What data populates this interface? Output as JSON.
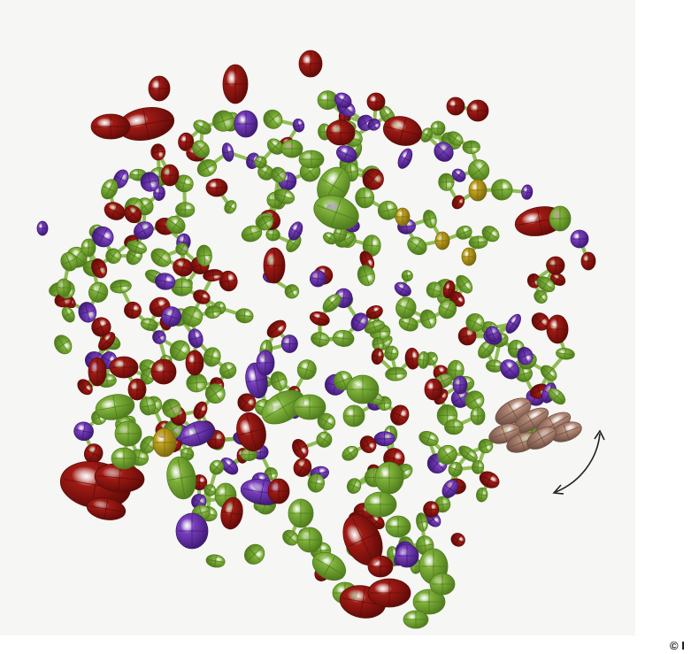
{
  "figure": {
    "subject": "",
    "palette": {
      "carbon": "#7fb23a",
      "carbon_dark": "#4e7a1c",
      "oxygen": "#a11a14",
      "oxygen_dark": "#5e0b08",
      "nitrogen": "#7a3fc0",
      "nitrogen_dark": "#3d1a72",
      "sulfur": "#c2a31c",
      "disordered": "#b48a78",
      "page_background": "#f6f6f4"
    },
    "icons": [
      "motion-arrow-icon"
    ]
  },
  "credit": {
    "text": "© I"
  }
}
